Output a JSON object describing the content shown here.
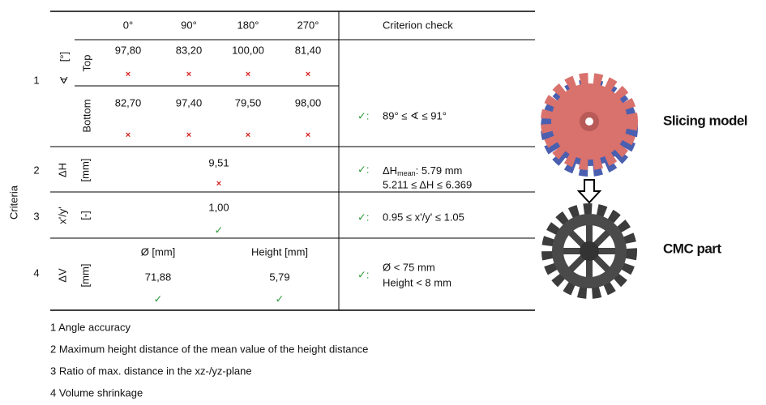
{
  "table": {
    "side_label": "Criteria",
    "header": [
      "0°",
      "90°",
      "180°",
      "270°",
      "Criterion check"
    ],
    "rows": [
      {
        "number": "1",
        "symbol": "∢",
        "unit": "[°]",
        "subrows": [
          {
            "label": "Top",
            "values": [
              "97,80",
              "83,20",
              "100,00",
              "81,40"
            ],
            "marks": [
              "×",
              "×",
              "×",
              "×"
            ]
          },
          {
            "label": "Bottom",
            "values": [
              "82,70",
              "97,40",
              "79,50",
              "98,00"
            ],
            "marks": [
              "×",
              "×",
              "×",
              "×"
            ]
          }
        ],
        "status": "✓:",
        "criterion": [
          "89° ≤ ∢ ≤ 91°"
        ]
      },
      {
        "number": "2",
        "symbol": "ΔH",
        "unit": "[mm]",
        "value": "9,51",
        "mark": "×",
        "status": "✓:",
        "criterion": [
          {
            "main": "ΔH",
            "sub": "mean",
            "rest": ": 5.79 mm"
          },
          "5.211 ≤ ΔH ≤ 6.369"
        ]
      },
      {
        "number": "3",
        "symbol": "x'/y'",
        "unit": "[-]",
        "value": "1,00",
        "mark": "✓",
        "status": "✓:",
        "criterion": [
          "0.95 ≤  x'/y' ≤ 1.05"
        ]
      },
      {
        "number": "4",
        "symbol": "ΔV",
        "unit": "[mm]",
        "columns": [
          {
            "label": "Ø [mm]",
            "value": "71,88",
            "mark": "✓"
          },
          {
            "label": "Height [mm]",
            "value": "5,79",
            "mark": "✓"
          }
        ],
        "status": "✓:",
        "criterion": [
          "Ø < 75 mm",
          "Height < 8 mm"
        ]
      }
    ]
  },
  "notes": [
    "1 Angle accuracy",
    "2 Maximum height distance of the mean value of the height distance",
    "3 Ratio of max. distance in the xz-/yz-plane",
    "4 Volume shrinkage"
  ],
  "figure": {
    "top_label": "Slicing model",
    "bottom_label": "CMC part"
  }
}
